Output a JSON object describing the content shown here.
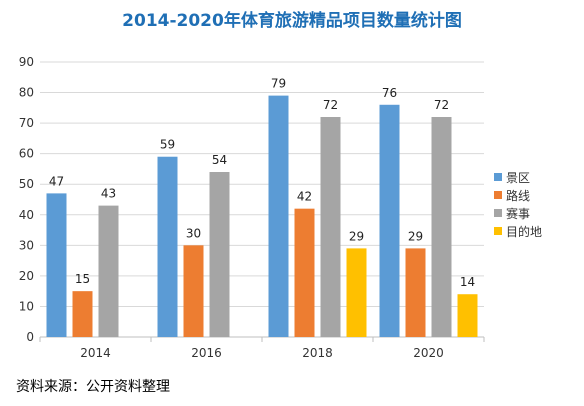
{
  "chart_data": {
    "type": "bar",
    "title": "2014-2020年体育旅游精品项目数量统计图",
    "categories": [
      "2014",
      "2016",
      "2018",
      "2020"
    ],
    "series": [
      {
        "name": "景区",
        "color": "#5b9bd5",
        "values": [
          47,
          59,
          79,
          76
        ]
      },
      {
        "name": "路线",
        "color": "#ed7d31",
        "values": [
          15,
          30,
          42,
          29
        ]
      },
      {
        "name": "赛事",
        "color": "#a5a5a5",
        "values": [
          43,
          54,
          72,
          72
        ]
      },
      {
        "name": "目的地",
        "color": "#ffc000",
        "values": [
          null,
          null,
          29,
          14
        ]
      }
    ],
    "ylim": [
      0,
      90
    ],
    "yticks": [
      0,
      10,
      20,
      30,
      40,
      50,
      60,
      70,
      80,
      90
    ],
    "grid": true,
    "legend": "right"
  },
  "source": "资料来源：公开资料整理"
}
